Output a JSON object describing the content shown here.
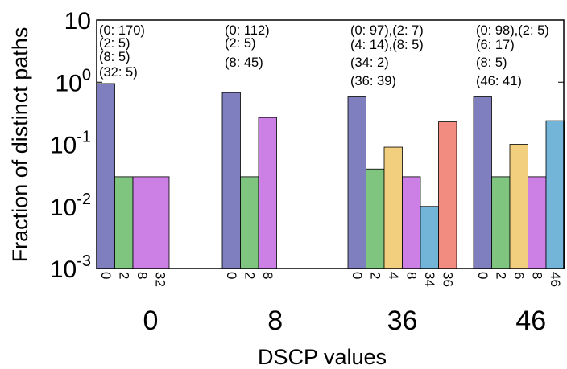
{
  "chart_data": {
    "type": "bar",
    "xlabel": "DSCP values",
    "ylabel": "Fraction of distinct paths",
    "yscale": "log",
    "ylim": [
      0.001,
      10
    ],
    "yticks": [
      {
        "base": "10",
        "exp": "-3"
      },
      {
        "base": "10",
        "exp": "-2"
      },
      {
        "base": "10",
        "exp": "-1"
      },
      {
        "base": "10",
        "exp": "0"
      },
      {
        "base": "10",
        "exp": ""
      }
    ],
    "colors": {
      "0": "#7f7fbf",
      "2": "#7fc47f",
      "4": "#f2ce7f",
      "6": "#f2ce7f",
      "8": "#cc7fe5",
      "32": "#cc7fe5",
      "34": "#72b5d9",
      "36": "#f28b80",
      "46": "#72b5d9"
    },
    "groups": [
      {
        "label": "0",
        "bars": [
          {
            "dscp": "0",
            "value": 0.95
          },
          {
            "dscp": "2",
            "value": 0.03
          },
          {
            "dscp": "8",
            "value": 0.03
          },
          {
            "dscp": "32",
            "value": 0.03
          }
        ],
        "annotations": [
          "(0: 170)",
          "(2: 5)",
          "(8: 5)",
          "(32: 5)"
        ]
      },
      {
        "label": "8",
        "bars": [
          {
            "dscp": "0",
            "value": 0.68
          },
          {
            "dscp": "2",
            "value": 0.03
          },
          {
            "dscp": "8",
            "value": 0.27
          }
        ],
        "annotations": [
          "(0: 112)",
          "(2: 5)",
          "(8: 45)"
        ]
      },
      {
        "label": "36",
        "bars": [
          {
            "dscp": "0",
            "value": 0.58
          },
          {
            "dscp": "2",
            "value": 0.04
          },
          {
            "dscp": "4",
            "value": 0.09
          },
          {
            "dscp": "8",
            "value": 0.03
          },
          {
            "dscp": "34",
            "value": 0.01
          },
          {
            "dscp": "36",
            "value": 0.23
          }
        ],
        "annotations": [
          "(0: 97),(2: 7)",
          "(4: 14),(8: 5)",
          "(34: 2)",
          "(36: 39)"
        ]
      },
      {
        "label": "46",
        "bars": [
          {
            "dscp": "0",
            "value": 0.58
          },
          {
            "dscp": "2",
            "value": 0.03
          },
          {
            "dscp": "6",
            "value": 0.1
          },
          {
            "dscp": "8",
            "value": 0.03
          },
          {
            "dscp": "46",
            "value": 0.24
          }
        ],
        "annotations": [
          "(0: 98),(2: 5)",
          "(6: 17)",
          "(8: 5)",
          "(46: 41)"
        ]
      }
    ]
  }
}
